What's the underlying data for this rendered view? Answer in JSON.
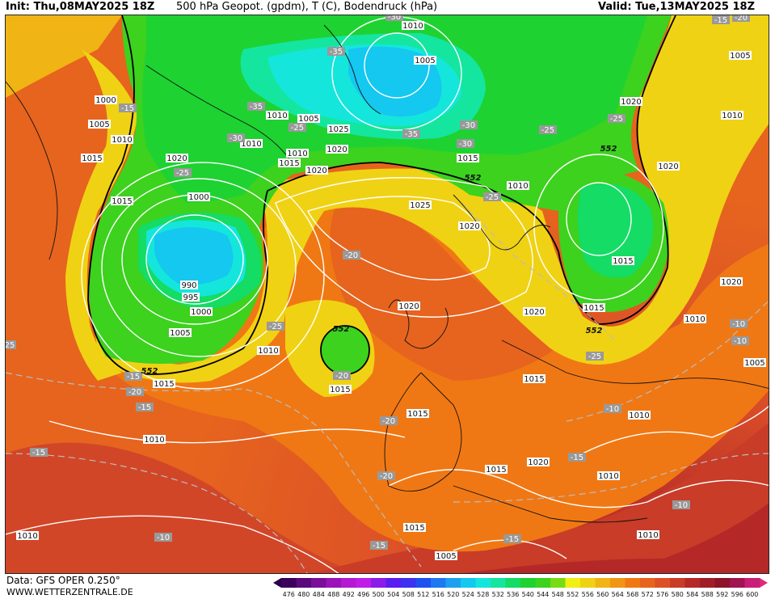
{
  "header": {
    "init": "Init: Thu,08MAY2025 18Z",
    "title": "500 hPa Geopot. (gpdm), T (C), Bodendruck (hPa)",
    "valid": "Valid: Tue,13MAY2025 18Z"
  },
  "footer": {
    "data_source": "Data: GFS OPER 0.250°",
    "website": "WWW.WETTERZENTRALE.DE"
  },
  "colorbar": {
    "ticks": [
      "476",
      "480",
      "484",
      "488",
      "492",
      "496",
      "500",
      "504",
      "508",
      "512",
      "516",
      "520",
      "524",
      "528",
      "532",
      "536",
      "540",
      "544",
      "548",
      "552",
      "556",
      "560",
      "564",
      "568",
      "572",
      "576",
      "580",
      "584",
      "588",
      "592",
      "596",
      "600"
    ],
    "colors": [
      "#3a005a",
      "#5a0a7a",
      "#7a0f9a",
      "#9a14ba",
      "#b41ad0",
      "#c01ee8",
      "#8a1ee8",
      "#5a1ef0",
      "#3c32f0",
      "#1e50f0",
      "#1e78f0",
      "#1ea0f0",
      "#14c8f0",
      "#14e6dc",
      "#14e6a0",
      "#14dc64",
      "#1ed232",
      "#3cd21e",
      "#78dc14",
      "#f0f014",
      "#f0d214",
      "#f0b414",
      "#f09614",
      "#f07814",
      "#e6641e",
      "#dc5028",
      "#c83c28",
      "#b42828",
      "#a01e28",
      "#8c1428",
      "#a01450",
      "#c81e78"
    ]
  },
  "map": {
    "pressure_labels": [
      "1010",
      "1005",
      "1000",
      "1005",
      "1010",
      "1015",
      "1020",
      "1015",
      "1000",
      "990",
      "995",
      "1000",
      "1005",
      "1010",
      "1015",
      "1015",
      "1010",
      "1005",
      "1025",
      "1020",
      "1020",
      "1010",
      "1015",
      "1010",
      "1025",
      "1020",
      "1020",
      "1010",
      "1005",
      "1020",
      "1010",
      "1015",
      "1015",
      "1020",
      "1010",
      "1015",
      "1015",
      "1010",
      "1015",
      "1020",
      "1010",
      "1010",
      "1020",
      "1005",
      "1010",
      "1005",
      "1015",
      "1010",
      "1020",
      "1015"
    ],
    "temperature_labels": [
      "-30",
      "-35",
      "-35",
      "-25",
      "-30",
      "-15",
      "-25",
      "-25",
      "-35",
      "-30",
      "-30",
      "-25",
      "-25",
      "-20",
      "-20",
      "-15",
      "-25",
      "-20",
      "-15",
      "-25",
      "-20",
      "-20",
      "-15",
      "-10",
      "-10",
      "-15",
      "-10",
      "-10",
      "-15",
      "-10",
      "-15",
      "-15",
      "-20",
      "25"
    ],
    "geopotential_labels": [
      "552",
      "552",
      "552",
      "552",
      "552"
    ]
  }
}
